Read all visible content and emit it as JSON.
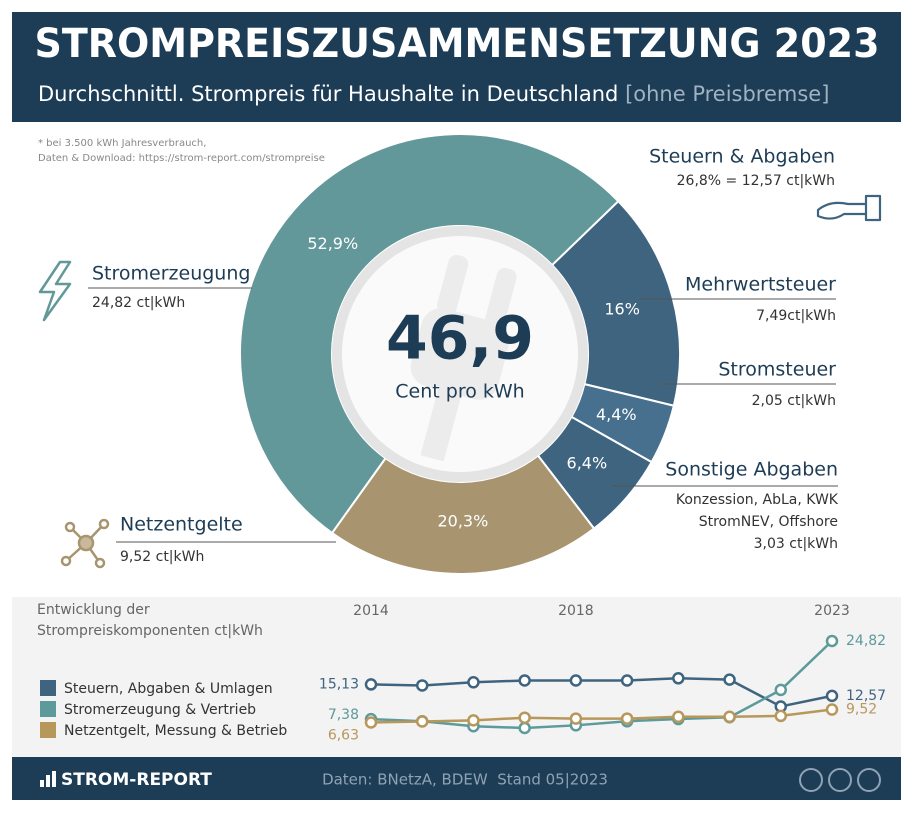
{
  "header": {
    "title": "STROMPREISZUSAMMENSETZUNG 2023",
    "subtitle": "Durchschnittl. Strompreis für Haushalte in Deutschland",
    "subtitle_note": "[ohne Preisbremse]"
  },
  "note": [
    "* bei 3.500 kWh Jahresverbrauch,",
    "Daten & Download: https://strom-report.com/strompreise"
  ],
  "chart_data": [
    {
      "type": "pie",
      "categories": [
        "Mehrwertsteuer",
        "Stromsteuer",
        "Sonstige Abgaben",
        "Netzentgelte",
        "Stromerzeugung"
      ],
      "values": [
        16,
        4.4,
        6.4,
        20.3,
        52.9
      ],
      "value_labels": [
        "16%",
        "4,4%",
        "6,4%",
        "20,3%",
        "52,9%"
      ],
      "colors": [
        "#3f6480",
        "#46708e",
        "#3f6480",
        "#a89570",
        "#62989a"
      ],
      "details": [
        [
          "7,49ct|kWh"
        ],
        [
          "2,05 ct|kWh"
        ],
        [
          "Konzession, AbLa, KWK",
          "StromNEV, Offshore",
          "3,03 ct|kWh"
        ],
        [
          "9,52 ct|kWh"
        ],
        [
          "24,82 ct|kWh"
        ]
      ],
      "center_value": "46,9",
      "center_label": "Cent pro kWh",
      "group": {
        "label": "Steuern & Abgaben",
        "detail": "26,8% = 12,57 ct|kWh"
      }
    },
    {
      "type": "line",
      "title": "Entwicklung der Strompreiskomponenten ct|kWh",
      "x": [
        2014,
        2015,
        2016,
        2017,
        2018,
        2019,
        2020,
        2021,
        2022,
        2023
      ],
      "xticks": [
        2014,
        2018,
        2023
      ],
      "series": [
        {
          "name": "Steuern, Abgaben & Umlagen",
          "color": "#3f6480",
          "values": [
            15.13,
            14.9,
            15.6,
            16.0,
            16.0,
            16.0,
            16.5,
            16.2,
            10.2,
            12.57
          ],
          "value_labels": [
            "15,13",
            null,
            null,
            null,
            null,
            null,
            null,
            null,
            null,
            "12,57"
          ]
        },
        {
          "name": "Stromerzeugung & Vertrieb",
          "color": "#5c9a9c",
          "values": [
            7.38,
            6.9,
            5.8,
            5.4,
            6.0,
            6.9,
            7.4,
            7.8,
            13.9,
            24.82
          ],
          "value_labels": [
            "7,38",
            null,
            null,
            null,
            null,
            null,
            null,
            null,
            null,
            "24,82"
          ]
        },
        {
          "name": "Netzentgelt, Messung & Betrieb",
          "color": "#b8975a",
          "values": [
            6.63,
            6.85,
            7.1,
            7.7,
            7.5,
            7.5,
            7.9,
            7.9,
            8.1,
            9.52
          ],
          "value_labels": [
            "6,63",
            null,
            null,
            null,
            null,
            null,
            null,
            null,
            null,
            "9,52"
          ]
        }
      ]
    }
  ],
  "footer": {
    "brand": "STROM-REPORT",
    "source": "Daten: BNetzA, BDEW  Stand 05|2023"
  }
}
